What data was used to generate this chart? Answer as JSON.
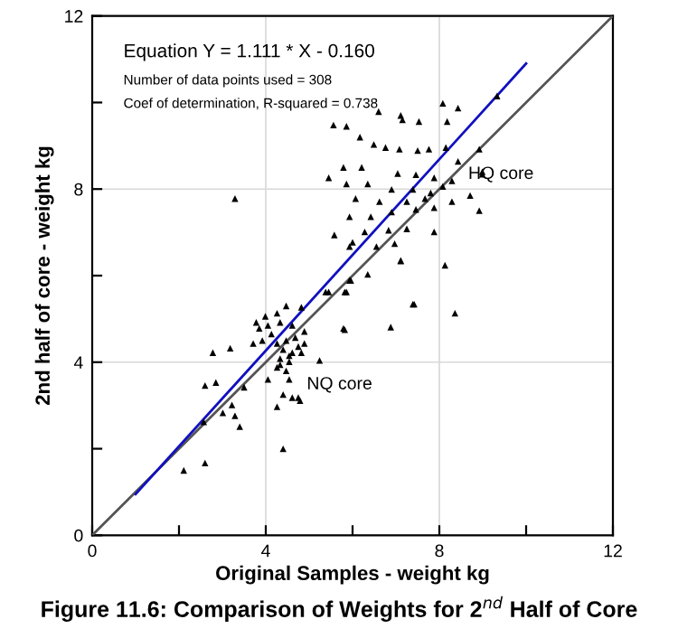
{
  "chart_data": {
    "type": "scatter",
    "title": "Figure 11.6: Comparison of Weights for 2$^{nd}$ Half of Core",
    "xlabel": "Original Samples - weight kg",
    "ylabel": "2nd half of core - weight kg",
    "xlim": [
      0,
      12
    ],
    "ylim": [
      0,
      12
    ],
    "xticks": [
      0,
      {
        "value": 2,
        "label": null
      },
      4,
      {
        "value": 6,
        "label": null
      },
      8,
      {
        "value": 10,
        "label": null
      },
      12
    ],
    "yticks": [
      0,
      {
        "value": 2,
        "label": null
      },
      4,
      {
        "value": 6,
        "label": null
      },
      8,
      {
        "value": 10,
        "label": null
      },
      12
    ],
    "grid": true,
    "legend": false,
    "annotations": [
      "Equation Y = 1.111 * X - 0.160",
      "Number of data points used = 308",
      "Coef of determination, R-squared = 0.738",
      "HQ core",
      "NQ core"
    ],
    "series": [
      {
        "type": "line",
        "color": "#555555",
        "marker": "none",
        "line_style": "solid",
        "x": [
          0,
          12
        ],
        "values": [
          0,
          12
        ]
      },
      {
        "type": "line",
        "color": "#1010c0",
        "marker": "none",
        "line_style": "solid",
        "x": [
          1,
          10
        ],
        "values": [
          0.95,
          10.9
        ]
      },
      {
        "color": "#000000",
        "marker": "triangle",
        "x": [
          2.11,
          2.6,
          4.4,
          2.78,
          3.18,
          2.6,
          2.85,
          2.57,
          3.01,
          3.22,
          3.29,
          3.4,
          3.5,
          3.78,
          3.99,
          4.47,
          4.82,
          4.89,
          5.24,
          4.75,
          4.4,
          4.26,
          4.05,
          3.71,
          4.33,
          4.54,
          5.38,
          5.79,
          5.82,
          5.96,
          6.88,
          7.39,
          7.11,
          5.58,
          6.0,
          8.36,
          7.42,
          5.82,
          8.13,
          7.11,
          8.92,
          8.71,
          8.99,
          8.08,
          6.6,
          7.11,
          7.53,
          8.18,
          5.56,
          5.86,
          6.17,
          6.49,
          6.76,
          7.08,
          7.5,
          7.76,
          8.15,
          8.43,
          8.92,
          9.33,
          5.79,
          6.21,
          7.04,
          7.46,
          7.88,
          8.29,
          5.45,
          5.86,
          6.35,
          6.9,
          7.39,
          7.8,
          8.08,
          6.07,
          6.62,
          7.25,
          7.67,
          5.93,
          6.42,
          6.9,
          7.46,
          7.88,
          8.29,
          6.28,
          6.83,
          7.25,
          7.88,
          5.93,
          6.55,
          6.97,
          6.35,
          5.93,
          5.45,
          5.86,
          3.29,
          8.99,
          8.43,
          7.15,
          3.92,
          4.13,
          4.26,
          4.47,
          4.68,
          4.89,
          4.4,
          4.61,
          4.82,
          4.33,
          4.54,
          4.26,
          4.47,
          4.05,
          4.33,
          4.61,
          4.26,
          3.85,
          4.75,
          4.61,
          4.79,
          4.54
        ],
        "values": [
          1.5,
          1.67,
          2.0,
          4.22,
          4.32,
          3.46,
          3.53,
          2.62,
          2.83,
          3.01,
          2.76,
          2.51,
          3.42,
          4.92,
          5.06,
          5.3,
          5.27,
          4.71,
          4.04,
          3.18,
          3.25,
          2.97,
          3.6,
          4.43,
          3.94,
          4.15,
          5.62,
          4.78,
          5.62,
          5.89,
          4.81,
          5.34,
          6.35,
          6.94,
          6.77,
          5.13,
          5.34,
          4.75,
          6.24,
          6.34,
          7.5,
          7.85,
          8.4,
          9.98,
          9.79,
          9.7,
          9.56,
          9.56,
          9.48,
          9.45,
          9.2,
          9.03,
          8.96,
          8.92,
          8.89,
          8.92,
          8.96,
          8.64,
          8.92,
          10.15,
          8.5,
          8.5,
          8.36,
          8.33,
          8.26,
          8.19,
          8.26,
          8.12,
          8.12,
          7.99,
          7.99,
          7.91,
          8.06,
          7.78,
          7.71,
          7.71,
          7.78,
          7.36,
          7.36,
          7.47,
          7.53,
          7.57,
          7.71,
          7.01,
          7.05,
          7.08,
          7.01,
          6.67,
          6.67,
          6.74,
          6.03,
          5.89,
          5.62,
          5.62,
          7.78,
          8.34,
          9.87,
          9.6,
          4.5,
          4.65,
          4.43,
          4.5,
          4.57,
          4.43,
          4.29,
          4.22,
          4.22,
          4.08,
          4.01,
          3.88,
          3.8,
          4.85,
          4.92,
          4.85,
          5.13,
          4.78,
          4.36,
          3.18,
          3.11,
          3.6
        ]
      }
    ]
  }
}
